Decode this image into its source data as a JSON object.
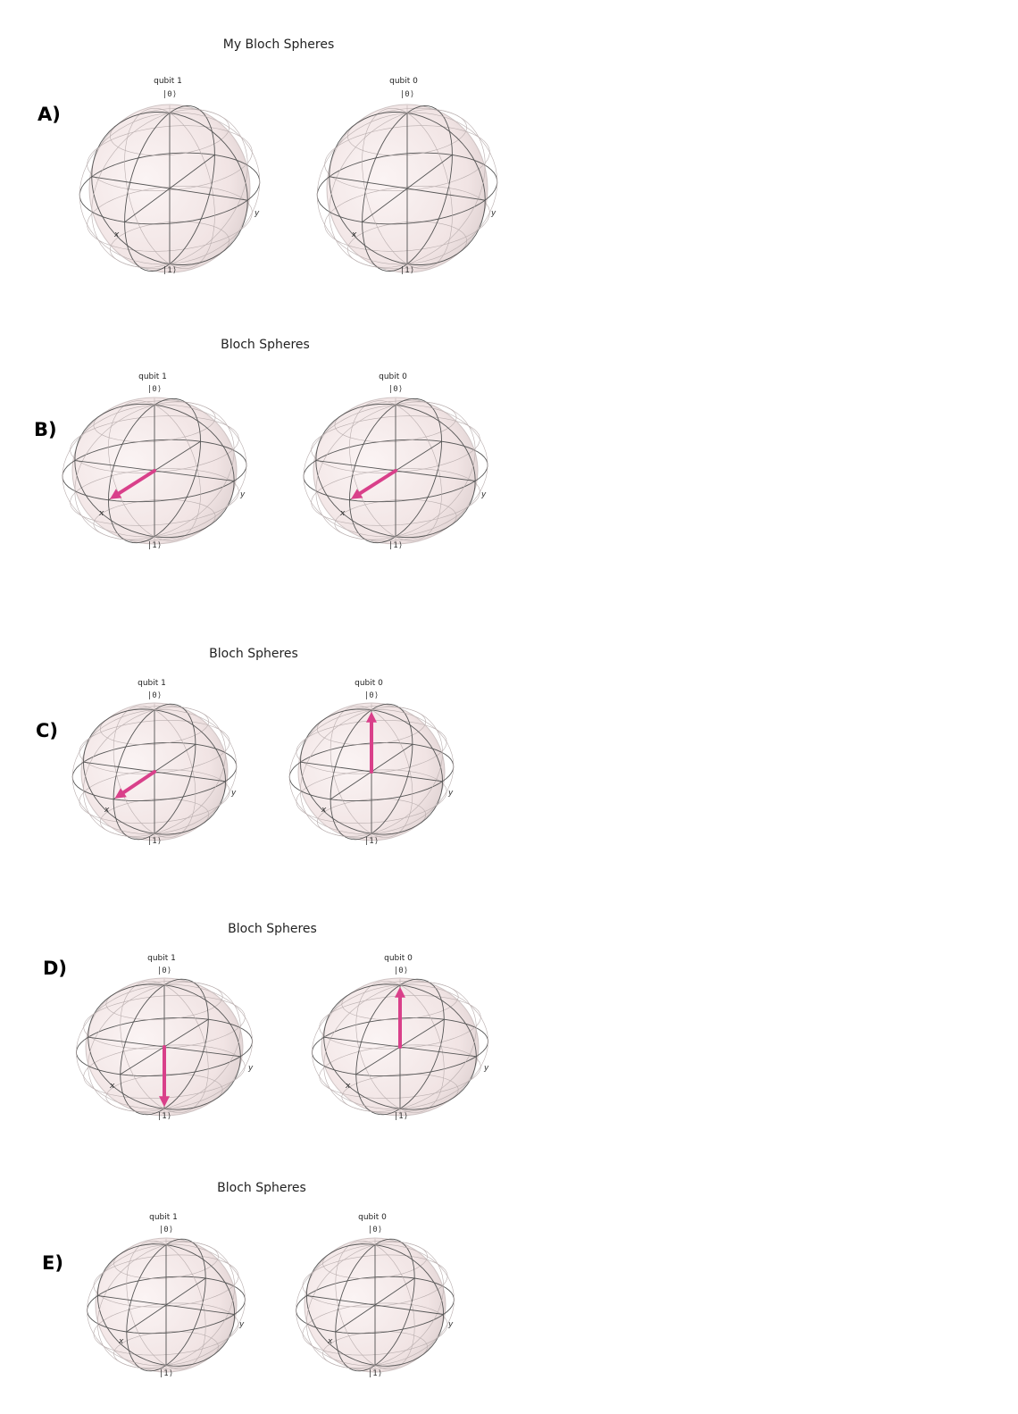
{
  "colors": {
    "vector": "#d9408a",
    "sphere_fill": "#f1e4e4",
    "wire": "#555555"
  },
  "panels": [
    {
      "letter": "A)",
      "title": "My Bloch Spheres",
      "spheres": [
        {
          "qubit_title": "qubit 1",
          "ket_top": "|0⟩",
          "ket_bottom": "|1⟩",
          "x_label": "x",
          "y_label": "y",
          "state": "none"
        },
        {
          "qubit_title": "qubit 0",
          "ket_top": "|0⟩",
          "ket_bottom": "|1⟩",
          "x_label": "x",
          "y_label": "y",
          "state": "none"
        }
      ]
    },
    {
      "letter": "B)",
      "title": "Bloch Spheres",
      "spheres": [
        {
          "qubit_title": "qubit 1",
          "ket_top": "|0⟩",
          "ket_bottom": "|1⟩",
          "x_label": "x",
          "y_label": "y",
          "state": "+x"
        },
        {
          "qubit_title": "qubit 0",
          "ket_top": "|0⟩",
          "ket_bottom": "|1⟩",
          "x_label": "x",
          "y_label": "y",
          "state": "+x"
        }
      ]
    },
    {
      "letter": "C)",
      "title": "Bloch Spheres",
      "spheres": [
        {
          "qubit_title": "qubit 1",
          "ket_top": "|0⟩",
          "ket_bottom": "|1⟩",
          "x_label": "x",
          "y_label": "y",
          "state": "+x"
        },
        {
          "qubit_title": "qubit 0",
          "ket_top": "|0⟩",
          "ket_bottom": "|1⟩",
          "x_label": "x",
          "y_label": "y",
          "state": "+z"
        }
      ]
    },
    {
      "letter": "D)",
      "title": "Bloch Spheres",
      "spheres": [
        {
          "qubit_title": "qubit 1",
          "ket_top": "|0⟩",
          "ket_bottom": "|1⟩",
          "x_label": "x",
          "y_label": "y",
          "state": "-z"
        },
        {
          "qubit_title": "qubit 0",
          "ket_top": "|0⟩",
          "ket_bottom": "|1⟩",
          "x_label": "x",
          "y_label": "y",
          "state": "+z"
        }
      ]
    },
    {
      "letter": "E)",
      "title": "Bloch Spheres",
      "spheres": [
        {
          "qubit_title": "qubit 1",
          "ket_top": "|0⟩",
          "ket_bottom": "|1⟩",
          "x_label": "x",
          "y_label": "y",
          "state": "none"
        },
        {
          "qubit_title": "qubit 0",
          "ket_top": "|0⟩",
          "ket_bottom": "|1⟩",
          "x_label": "x",
          "y_label": "y",
          "state": "none"
        }
      ]
    }
  ]
}
